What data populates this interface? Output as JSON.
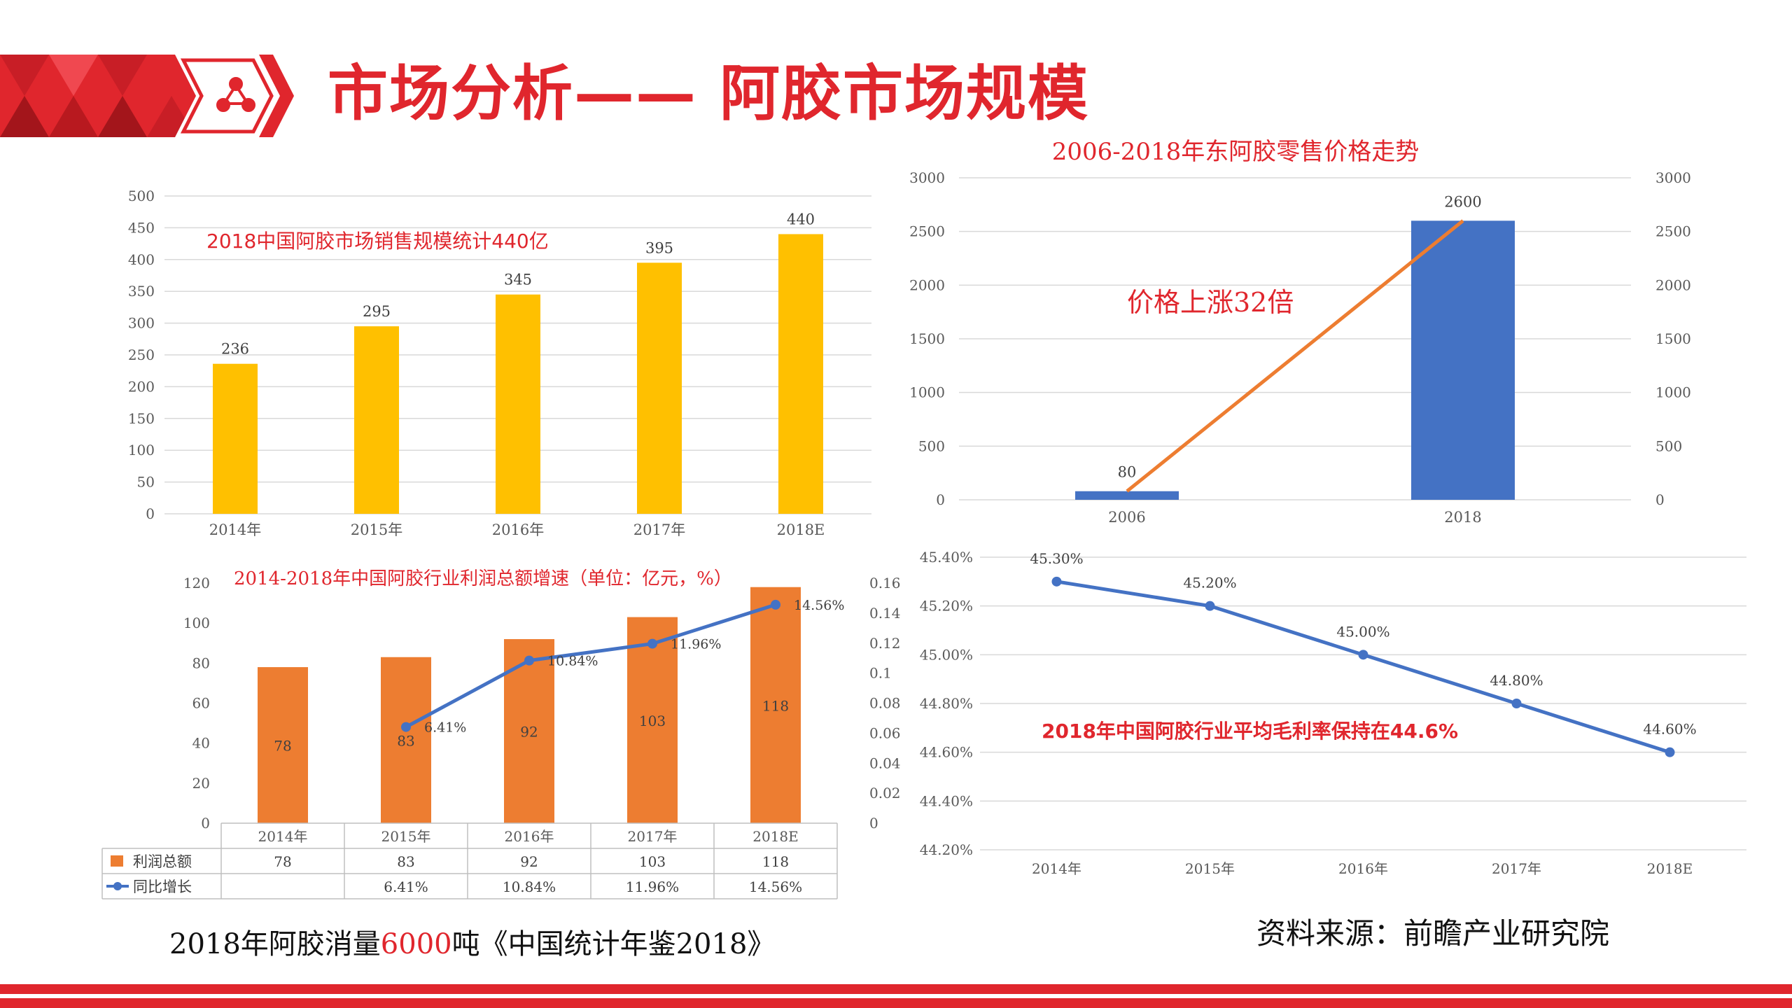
{
  "page": {
    "title": "市场分析—— 阿胶市场规模",
    "logo_icon": "network-nodes-icon",
    "accent_color": "#e0262d"
  },
  "notes": {
    "consumption_prefix": "2018年阿胶消量",
    "consumption_value": "6000",
    "consumption_suffix": "吨《中国统计年鉴2018》",
    "source": "资料来源：前瞻产业研究院"
  },
  "chart_data": [
    {
      "id": "market-size",
      "type": "bar",
      "annotation": "2018中国阿胶市场销售规模统计440亿",
      "categories": [
        "2014年",
        "2015年",
        "2016年",
        "2017年",
        "2018E"
      ],
      "values": [
        236,
        295,
        345,
        395,
        440
      ],
      "ylim": [
        0,
        500
      ],
      "yticks": [
        0,
        50,
        100,
        150,
        200,
        250,
        300,
        350,
        400,
        450,
        500
      ],
      "bar_color": "#ffc000",
      "grid": true
    },
    {
      "id": "retail-price",
      "type": "bar",
      "title": "2006-2018年东阿胶零售价格走势",
      "annotation": "价格上涨32倍",
      "categories": [
        "2006",
        "2018"
      ],
      "values": [
        80,
        2600
      ],
      "ylim": [
        0,
        3000
      ],
      "yticks": [
        0,
        500,
        1000,
        1500,
        2000,
        2500,
        3000
      ],
      "bar_color": "#4472c4",
      "line_color": "#ed7d31",
      "secondary_axis": true,
      "grid": true
    },
    {
      "id": "profit",
      "type": "bar",
      "title": "2014-2018年中国阿胶行业利润总额增速（单位：亿元，%）",
      "categories": [
        "2014年",
        "2015年",
        "2016年",
        "2017年",
        "2018E"
      ],
      "series": [
        {
          "name": "利润总额",
          "type": "bar",
          "values": [
            78,
            83,
            92,
            103,
            118
          ],
          "color": "#ed7d31"
        },
        {
          "name": "同比增长",
          "type": "line",
          "axis": "right",
          "values": [
            null,
            0.0641,
            0.1084,
            0.1196,
            0.1456
          ],
          "labels": [
            "",
            "6.41%",
            "10.84%",
            "11.96%",
            "14.56%"
          ],
          "color": "#4472c4"
        }
      ],
      "ylim": [
        0,
        120
      ],
      "yticks": [
        0,
        20,
        40,
        60,
        80,
        100,
        120
      ],
      "y2lim": [
        0,
        0.16
      ],
      "y2ticks": [
        "0",
        "0.02",
        "0.04",
        "0.06",
        "0.08",
        "0.1",
        "0.12",
        "0.14",
        "0.16"
      ],
      "data_table": true,
      "legend": "data-table"
    },
    {
      "id": "gross-margin",
      "type": "line",
      "annotation": "2018年中国阿胶行业平均毛利率保持在44.6%",
      "categories": [
        "2014年",
        "2015年",
        "2016年",
        "2017年",
        "2018E"
      ],
      "values": [
        45.3,
        45.2,
        45.0,
        44.8,
        44.6
      ],
      "labels": [
        "45.30%",
        "45.20%",
        "45.00%",
        "44.80%",
        "44.60%"
      ],
      "ylim": [
        44.2,
        45.4
      ],
      "yticks": [
        "44.20%",
        "44.40%",
        "44.60%",
        "44.80%",
        "45.00%",
        "45.20%",
        "45.40%"
      ],
      "line_color": "#4472c4",
      "grid": true
    }
  ]
}
